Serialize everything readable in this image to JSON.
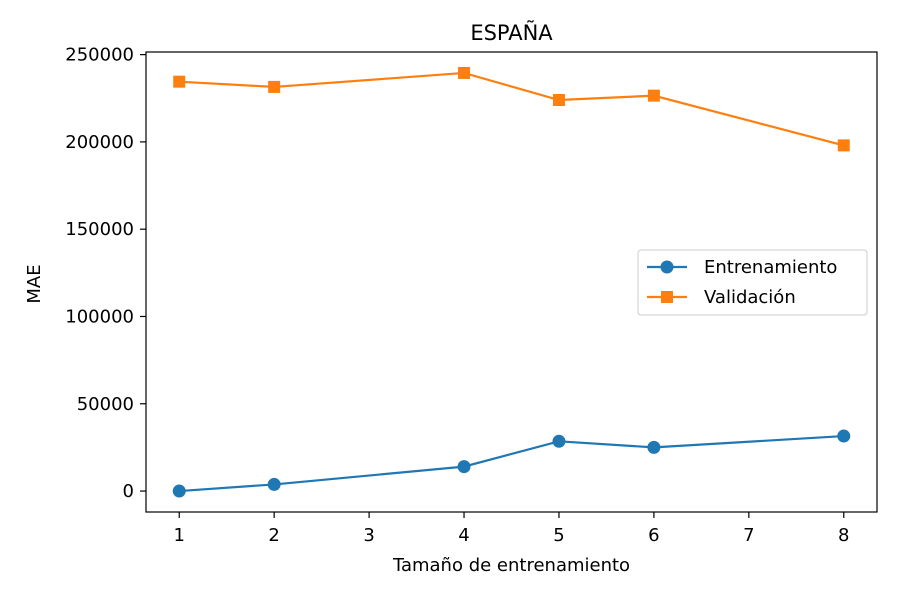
{
  "chart_data": {
    "type": "line",
    "title": "ESPAÑA",
    "xlabel": "Tamaño de entrenamiento",
    "ylabel": "MAE",
    "xlim": [
      0.65,
      8.35
    ],
    "ylim": [
      -12000,
      251500
    ],
    "xticks": [
      1,
      2,
      3,
      4,
      5,
      6,
      7,
      8
    ],
    "yticks": [
      0,
      50000,
      100000,
      150000,
      200000,
      250000
    ],
    "grid": false,
    "legend_position": "center-right",
    "series": [
      {
        "name": "Entrenamiento",
        "color": "#1f77b4",
        "marker": "circle",
        "x": [
          1,
          2,
          4,
          5,
          6,
          8
        ],
        "y": [
          0,
          3800,
          14000,
          28500,
          25000,
          31500
        ]
      },
      {
        "name": "Validación",
        "color": "#ff7f0e",
        "marker": "square",
        "x": [
          1,
          2,
          4,
          5,
          6,
          8
        ],
        "y": [
          234500,
          231500,
          239500,
          224000,
          226500,
          198000
        ]
      }
    ]
  }
}
